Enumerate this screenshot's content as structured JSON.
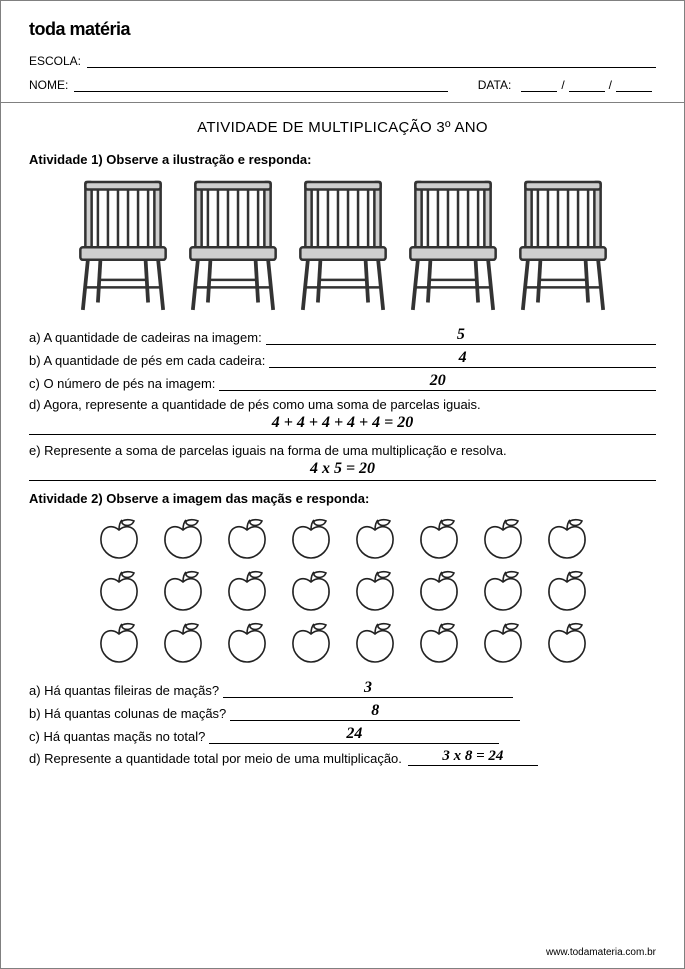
{
  "brand": "toda matéria",
  "header": {
    "school_label": "ESCOLA:",
    "name_label": "NOME:",
    "date_label": "DATA:"
  },
  "title": "ATIVIDADE DE MULTIPLICAÇÃO 3º ANO",
  "activity1": {
    "heading": "Atividade 1) Observe a ilustração e responda:",
    "chair_count": 5,
    "qa": "a) A quantidade de cadeiras na imagem:",
    "qa_ans": "5",
    "qb": "b) A quantidade de pés em cada cadeira:",
    "qb_ans": "4",
    "qc": "c) O número de pés na imagem:",
    "qc_ans": "20",
    "qd": "d) Agora, represente a quantidade de pés como uma soma de parcelas iguais.",
    "qd_ans": "4 + 4 + 4 + 4 + 4 = 20",
    "qe": "e) Represente a soma de parcelas iguais na forma de uma multiplicação e resolva.",
    "qe_ans": "4 x 5 = 20"
  },
  "activity2": {
    "heading": "Atividade 2) Observe a imagem das maçãs e responda:",
    "rows": 3,
    "cols": 8,
    "qa": "a) Há quantas fileiras de maçãs?",
    "qa_ans": "3",
    "qb": "b) Há quantas colunas de maçãs?",
    "qb_ans": "8",
    "qc": "c) Há quantas maçãs no total?",
    "qc_ans": "24",
    "qd": "d) Represente a quantidade total por meio de uma multiplicação.",
    "qd_ans": "3 x 8 = 24"
  },
  "footer": "www.todamateria.com.br",
  "style": {
    "chair_fill": "#cfcfcf",
    "chair_stroke": "#333333",
    "apple_stroke": "#222222"
  }
}
